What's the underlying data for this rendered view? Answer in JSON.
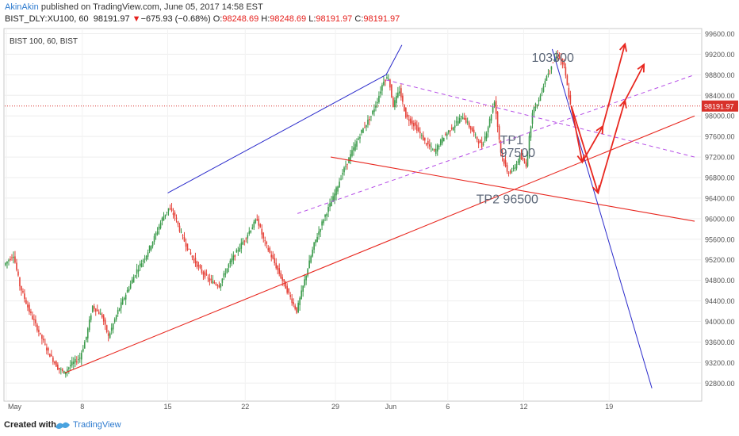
{
  "header": {
    "author": "AkinAkin",
    "published": " published on TradingView.com, June 05, 2017 14:58 EST",
    "symbol": "BIST_DLY:XU100, 60",
    "price": "98191.97",
    "arrow": "▼",
    "change": "−675.93 (−0.68%)",
    "o_label": "O:",
    "o_value": "98248.69",
    "h_label": "H:",
    "h_value": "98248.69",
    "l_label": "L:",
    "l_value": "98191.97",
    "c_label": "C:",
    "c_value": "98191.97"
  },
  "footer": {
    "created": "Created with",
    "brand": "TradingView",
    "logo_icon": "tradingview-logo-icon"
  },
  "colors": {
    "up": "#3a9a4a",
    "down": "#e5433a",
    "red_line": "#e8271f",
    "blue_line": "#2a2acb",
    "purple_dash": "#b64ee6",
    "price_line": "#d8312a",
    "label_text": "#5b6677"
  },
  "chart_data": {
    "type": "candlestick",
    "title": "BIST 100, 60, BIST",
    "ylim": [
      92450,
      99700
    ],
    "x_tick_labels": [
      "May",
      "8",
      "15",
      "22",
      "29",
      "Jun",
      "6",
      "12",
      "19"
    ],
    "y_ticks": [
      92800,
      93200,
      93600,
      94000,
      94400,
      94800,
      95200,
      95600,
      96000,
      96400,
      96800,
      97200,
      97600,
      98000,
      98400,
      98800,
      99200,
      99600
    ],
    "y_tick_labels": [
      "92800.00",
      "93200.00",
      "93600.00",
      "94000.00",
      "94400.00",
      "94800.00",
      "95200.00",
      "95600.00",
      "96000.00",
      "96400.00",
      "96800.00",
      "97200.00",
      "97600.00",
      "98000.00",
      "98400.00",
      "98800.00",
      "99200.00",
      "99600.00"
    ],
    "last_price": 98191.97,
    "last_price_label": "98191.97",
    "price_path": [
      [
        0,
        95100
      ],
      [
        6,
        95300
      ],
      [
        10,
        94700
      ],
      [
        16,
        94200
      ],
      [
        22,
        93800
      ],
      [
        28,
        93400
      ],
      [
        34,
        93100
      ],
      [
        38,
        93000
      ],
      [
        42,
        93150
      ],
      [
        48,
        93300
      ],
      [
        52,
        93700
      ],
      [
        56,
        94300
      ],
      [
        62,
        94100
      ],
      [
        66,
        93700
      ],
      [
        72,
        94200
      ],
      [
        78,
        94600
      ],
      [
        84,
        95000
      ],
      [
        90,
        95300
      ],
      [
        96,
        95700
      ],
      [
        100,
        96000
      ],
      [
        104,
        96200
      ],
      [
        108,
        96050
      ],
      [
        112,
        95700
      ],
      [
        118,
        95300
      ],
      [
        124,
        95000
      ],
      [
        130,
        94800
      ],
      [
        136,
        94700
      ],
      [
        142,
        95100
      ],
      [
        148,
        95400
      ],
      [
        154,
        95700
      ],
      [
        160,
        96000
      ],
      [
        164,
        95600
      ],
      [
        170,
        95200
      ],
      [
        176,
        94800
      ],
      [
        182,
        94400
      ],
      [
        185,
        94200
      ],
      [
        190,
        94800
      ],
      [
        196,
        95500
      ],
      [
        202,
        96000
      ],
      [
        208,
        96400
      ],
      [
        214,
        96900
      ],
      [
        220,
        97300
      ],
      [
        226,
        97700
      ],
      [
        232,
        98000
      ],
      [
        236,
        98300
      ],
      [
        240,
        98700
      ],
      [
        243,
        98750
      ],
      [
        246,
        98200
      ],
      [
        250,
        98500
      ],
      [
        254,
        98000
      ],
      [
        260,
        97800
      ],
      [
        266,
        97500
      ],
      [
        272,
        97300
      ],
      [
        278,
        97600
      ],
      [
        284,
        97800
      ],
      [
        290,
        98000
      ],
      [
        296,
        97700
      ],
      [
        302,
        97400
      ],
      [
        306,
        97800
      ],
      [
        310,
        98300
      ],
      [
        314,
        97300
      ],
      [
        318,
        96900
      ],
      [
        322,
        96950
      ],
      [
        326,
        97200
      ],
      [
        330,
        97050
      ],
      [
        334,
        98100
      ],
      [
        338,
        98300
      ],
      [
        342,
        98700
      ],
      [
        346,
        99000
      ],
      [
        350,
        99200
      ],
      [
        354,
        98950
      ],
      [
        358,
        98200
      ]
    ],
    "annotations": [
      {
        "text": "103300",
        "x": 333,
        "y": 99050
      },
      {
        "text": "TP1",
        "x": 313,
        "y": 97450
      },
      {
        "text": "97500",
        "x": 313,
        "y": 97200
      },
      {
        "text": "TP2 96500",
        "x": 298,
        "y": 96300
      }
    ],
    "trendlines": [
      {
        "kind": "red",
        "points": [
          [
            38,
            93000
          ],
          [
            436,
            98000
          ]
        ]
      },
      {
        "kind": "red",
        "points": [
          [
            206,
            97200
          ],
          [
            436,
            95950
          ]
        ]
      },
      {
        "kind": "blue",
        "points": [
          [
            103,
            96500
          ],
          [
            241,
            98800
          ]
        ]
      },
      {
        "kind": "blue",
        "points": [
          [
            241,
            98800
          ],
          [
            251,
            99380
          ]
        ]
      },
      {
        "kind": "blue",
        "points": [
          [
            346,
            99300
          ],
          [
            409,
            92700
          ]
        ]
      },
      {
        "kind": "purple",
        "points": [
          [
            185,
            96100
          ],
          [
            436,
            98800
          ]
        ]
      },
      {
        "kind": "purple",
        "points": [
          [
            241,
            98700
          ],
          [
            436,
            97200
          ]
        ]
      }
    ],
    "arrows": [
      {
        "points": [
          [
            358,
            98200
          ],
          [
            365,
            97100
          ],
          [
            378,
            97800
          ],
          [
            392,
            99400
          ]
        ]
      },
      {
        "points": [
          [
            358,
            98200
          ],
          [
            375,
            96500
          ],
          [
            392,
            98300
          ],
          [
            404,
            99000
          ]
        ]
      }
    ]
  }
}
